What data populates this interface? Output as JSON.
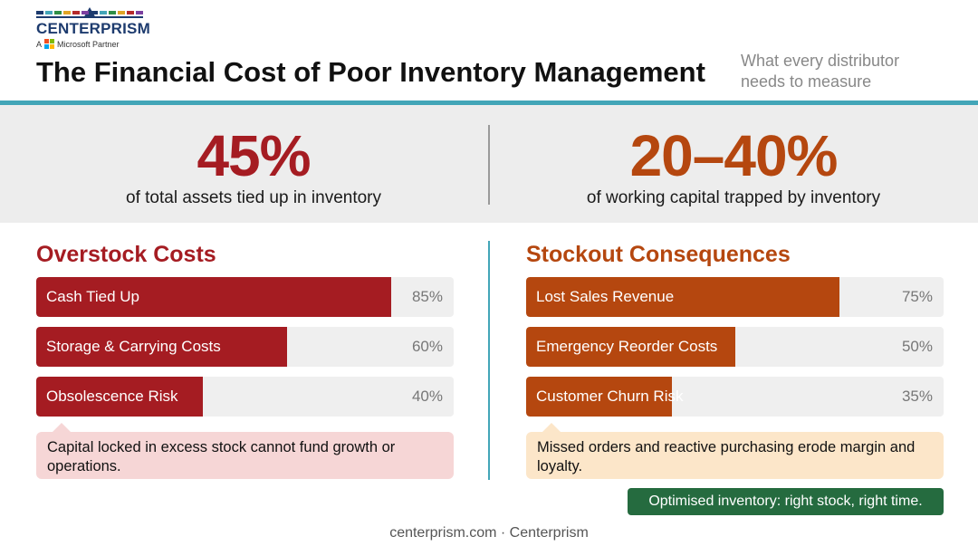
{
  "brand": {
    "name": "CENTERPRISM",
    "partner_prefix": "A",
    "partner_text": "Microsoft Partner",
    "ms_colors": [
      "#f25022",
      "#7fba00",
      "#00a4ef",
      "#ffb900"
    ],
    "dot_colors": [
      "#1d3b6e",
      "#43a6b8",
      "#2f8f46",
      "#e0a526",
      "#b52a2a",
      "#7b3fa0",
      "#1d3b6e",
      "#43a6b8",
      "#2f8f46",
      "#e0a526",
      "#b52a2a",
      "#7b3fa0"
    ]
  },
  "header": {
    "title": "The Financial Cost of Poor Inventory Management",
    "subtitle": "What every distributor needs to measure"
  },
  "stats": [
    {
      "value": "45%",
      "label": "of total assets tied up in inventory",
      "color": "#a51c22"
    },
    {
      "value": "20–40%",
      "label": "of working capital trapped by inventory",
      "color": "#b5470f"
    }
  ],
  "chart_data": [
    {
      "type": "bar",
      "title": "Overstock Costs",
      "categories": [
        "Cash Tied Up",
        "Storage & Carrying Costs",
        "Obsolescence Risk"
      ],
      "values": [
        85,
        60,
        40
      ],
      "labels": [
        "85%",
        "60%",
        "40%"
      ],
      "ylim": [
        0,
        100
      ],
      "color": "#a51c22",
      "note": "Capital locked in excess stock cannot fund growth or operations.",
      "note_bg": "#f6d6d6"
    },
    {
      "type": "bar",
      "title": "Stockout Consequences",
      "categories": [
        "Lost Sales Revenue",
        "Emergency Reorder Costs",
        "Customer Churn Risk"
      ],
      "values": [
        75,
        50,
        35
      ],
      "labels": [
        "75%",
        "50%",
        "35%"
      ],
      "ylim": [
        0,
        100
      ],
      "color": "#b5470f",
      "note": "Missed orders and reactive purchasing erode margin and loyalty.",
      "note_bg": "#fce6c9"
    }
  ],
  "tagline": "Optimised inventory: right stock, right time.",
  "footer": "centerprism.com · Centerprism",
  "colors": {
    "accent_teal": "#43a6b8",
    "tagline_green": "#256b3f"
  }
}
